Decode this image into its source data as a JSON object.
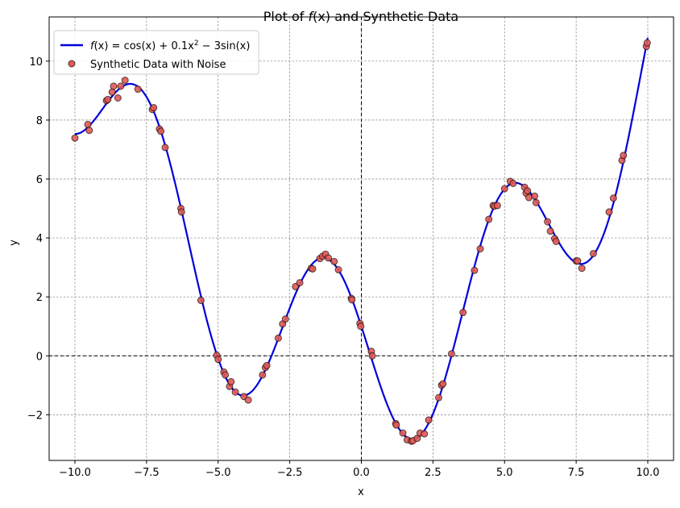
{
  "chart_data": {
    "type": "line",
    "title_prefix": "Plot of ",
    "title_fx": "f",
    "title_arg": "(x)",
    "title_suffix": " and Synthetic Data",
    "xlabel": "x",
    "ylabel": "y",
    "xlim": [
      -10.9,
      10.9
    ],
    "ylim": [
      -3.55,
      11.5
    ],
    "xticks": [
      -10.0,
      -7.5,
      -5.0,
      -2.5,
      0.0,
      2.5,
      5.0,
      7.5,
      10.0
    ],
    "xtick_labels": [
      "−10.0",
      "−7.5",
      "−5.0",
      "−2.5",
      "0.0",
      "2.5",
      "5.0",
      "7.5",
      "10.0"
    ],
    "yticks": [
      -2,
      0,
      2,
      4,
      6,
      8,
      10
    ],
    "ytick_labels": [
      "−2",
      "0",
      "2",
      "4",
      "6",
      "8",
      "10"
    ],
    "grid": true,
    "reference_lines": [
      "x = 0",
      "y = 0"
    ],
    "legend_position": "upper-left",
    "curve_series": {
      "name_parts": [
        "f",
        "(x) = cos(x) + 0.1x",
        "2",
        " − 3sin(x)"
      ],
      "function": "cos(x) + 0.1*x^2 - 3*sin(x)",
      "x_range": [
        -10,
        10
      ],
      "color": "#0000dd"
    },
    "scatter_series": {
      "name": "Synthetic Data with Noise",
      "face_color": "#e05a55",
      "edge_color": "#000000",
      "points": [
        [
          -10.0,
          7.39
        ],
        [
          -9.55,
          7.85
        ],
        [
          -9.5,
          7.65
        ],
        [
          -8.9,
          8.66
        ],
        [
          -8.85,
          8.7
        ],
        [
          -8.7,
          8.95
        ],
        [
          -8.65,
          9.15
        ],
        [
          -8.5,
          8.75
        ],
        [
          -8.4,
          9.15
        ],
        [
          -8.25,
          9.35
        ],
        [
          -7.8,
          9.05
        ],
        [
          -7.3,
          8.36
        ],
        [
          -7.25,
          8.42
        ],
        [
          -7.05,
          7.7
        ],
        [
          -7.0,
          7.62
        ],
        [
          -6.85,
          7.07
        ],
        [
          -6.3,
          5.0
        ],
        [
          -6.28,
          4.88
        ],
        [
          -5.6,
          1.88
        ],
        [
          -5.05,
          0.02
        ],
        [
          -5.0,
          -0.12
        ],
        [
          -4.8,
          -0.55
        ],
        [
          -4.75,
          -0.65
        ],
        [
          -4.6,
          -1.04
        ],
        [
          -4.55,
          -0.88
        ],
        [
          -4.4,
          -1.23
        ],
        [
          -4.1,
          -1.38
        ],
        [
          -3.95,
          -1.5
        ],
        [
          -3.45,
          -0.65
        ],
        [
          -3.35,
          -0.4
        ],
        [
          -3.3,
          -0.33
        ],
        [
          -2.9,
          0.6
        ],
        [
          -2.75,
          1.08
        ],
        [
          -2.65,
          1.25
        ],
        [
          -2.3,
          2.35
        ],
        [
          -2.15,
          2.48
        ],
        [
          -1.75,
          2.97
        ],
        [
          -1.7,
          2.95
        ],
        [
          -1.45,
          3.3
        ],
        [
          -1.35,
          3.38
        ],
        [
          -1.25,
          3.45
        ],
        [
          -1.15,
          3.32
        ],
        [
          -0.95,
          3.2
        ],
        [
          -0.8,
          2.92
        ],
        [
          -0.35,
          1.95
        ],
        [
          -0.33,
          1.9
        ],
        [
          -0.05,
          1.1
        ],
        [
          -0.02,
          1.0
        ],
        [
          0.35,
          0.15
        ],
        [
          0.38,
          0.0
        ],
        [
          1.2,
          -2.3
        ],
        [
          1.22,
          -2.35
        ],
        [
          1.45,
          -2.62
        ],
        [
          1.6,
          -2.85
        ],
        [
          1.75,
          -2.9
        ],
        [
          1.8,
          -2.88
        ],
        [
          1.95,
          -2.8
        ],
        [
          2.05,
          -2.62
        ],
        [
          2.2,
          -2.65
        ],
        [
          2.35,
          -2.18
        ],
        [
          2.7,
          -1.42
        ],
        [
          2.8,
          -1.0
        ],
        [
          2.85,
          -0.95
        ],
        [
          3.15,
          0.07
        ],
        [
          3.55,
          1.47
        ],
        [
          3.95,
          2.9
        ],
        [
          4.15,
          3.63
        ],
        [
          4.45,
          4.63
        ],
        [
          4.6,
          5.1
        ],
        [
          4.65,
          5.08
        ],
        [
          4.75,
          5.1
        ],
        [
          5.0,
          5.67
        ],
        [
          5.2,
          5.92
        ],
        [
          5.3,
          5.85
        ],
        [
          5.7,
          5.72
        ],
        [
          5.75,
          5.52
        ],
        [
          5.8,
          5.6
        ],
        [
          5.85,
          5.37
        ],
        [
          6.05,
          5.42
        ],
        [
          6.1,
          5.2
        ],
        [
          6.5,
          4.55
        ],
        [
          6.6,
          4.23
        ],
        [
          6.75,
          3.98
        ],
        [
          6.8,
          3.88
        ],
        [
          7.5,
          3.22
        ],
        [
          7.55,
          3.22
        ],
        [
          7.7,
          2.97
        ],
        [
          8.1,
          3.47
        ],
        [
          8.65,
          4.88
        ],
        [
          8.8,
          5.35
        ],
        [
          9.1,
          6.63
        ],
        [
          9.15,
          6.8
        ],
        [
          9.95,
          10.5
        ],
        [
          9.98,
          10.62
        ]
      ]
    }
  }
}
